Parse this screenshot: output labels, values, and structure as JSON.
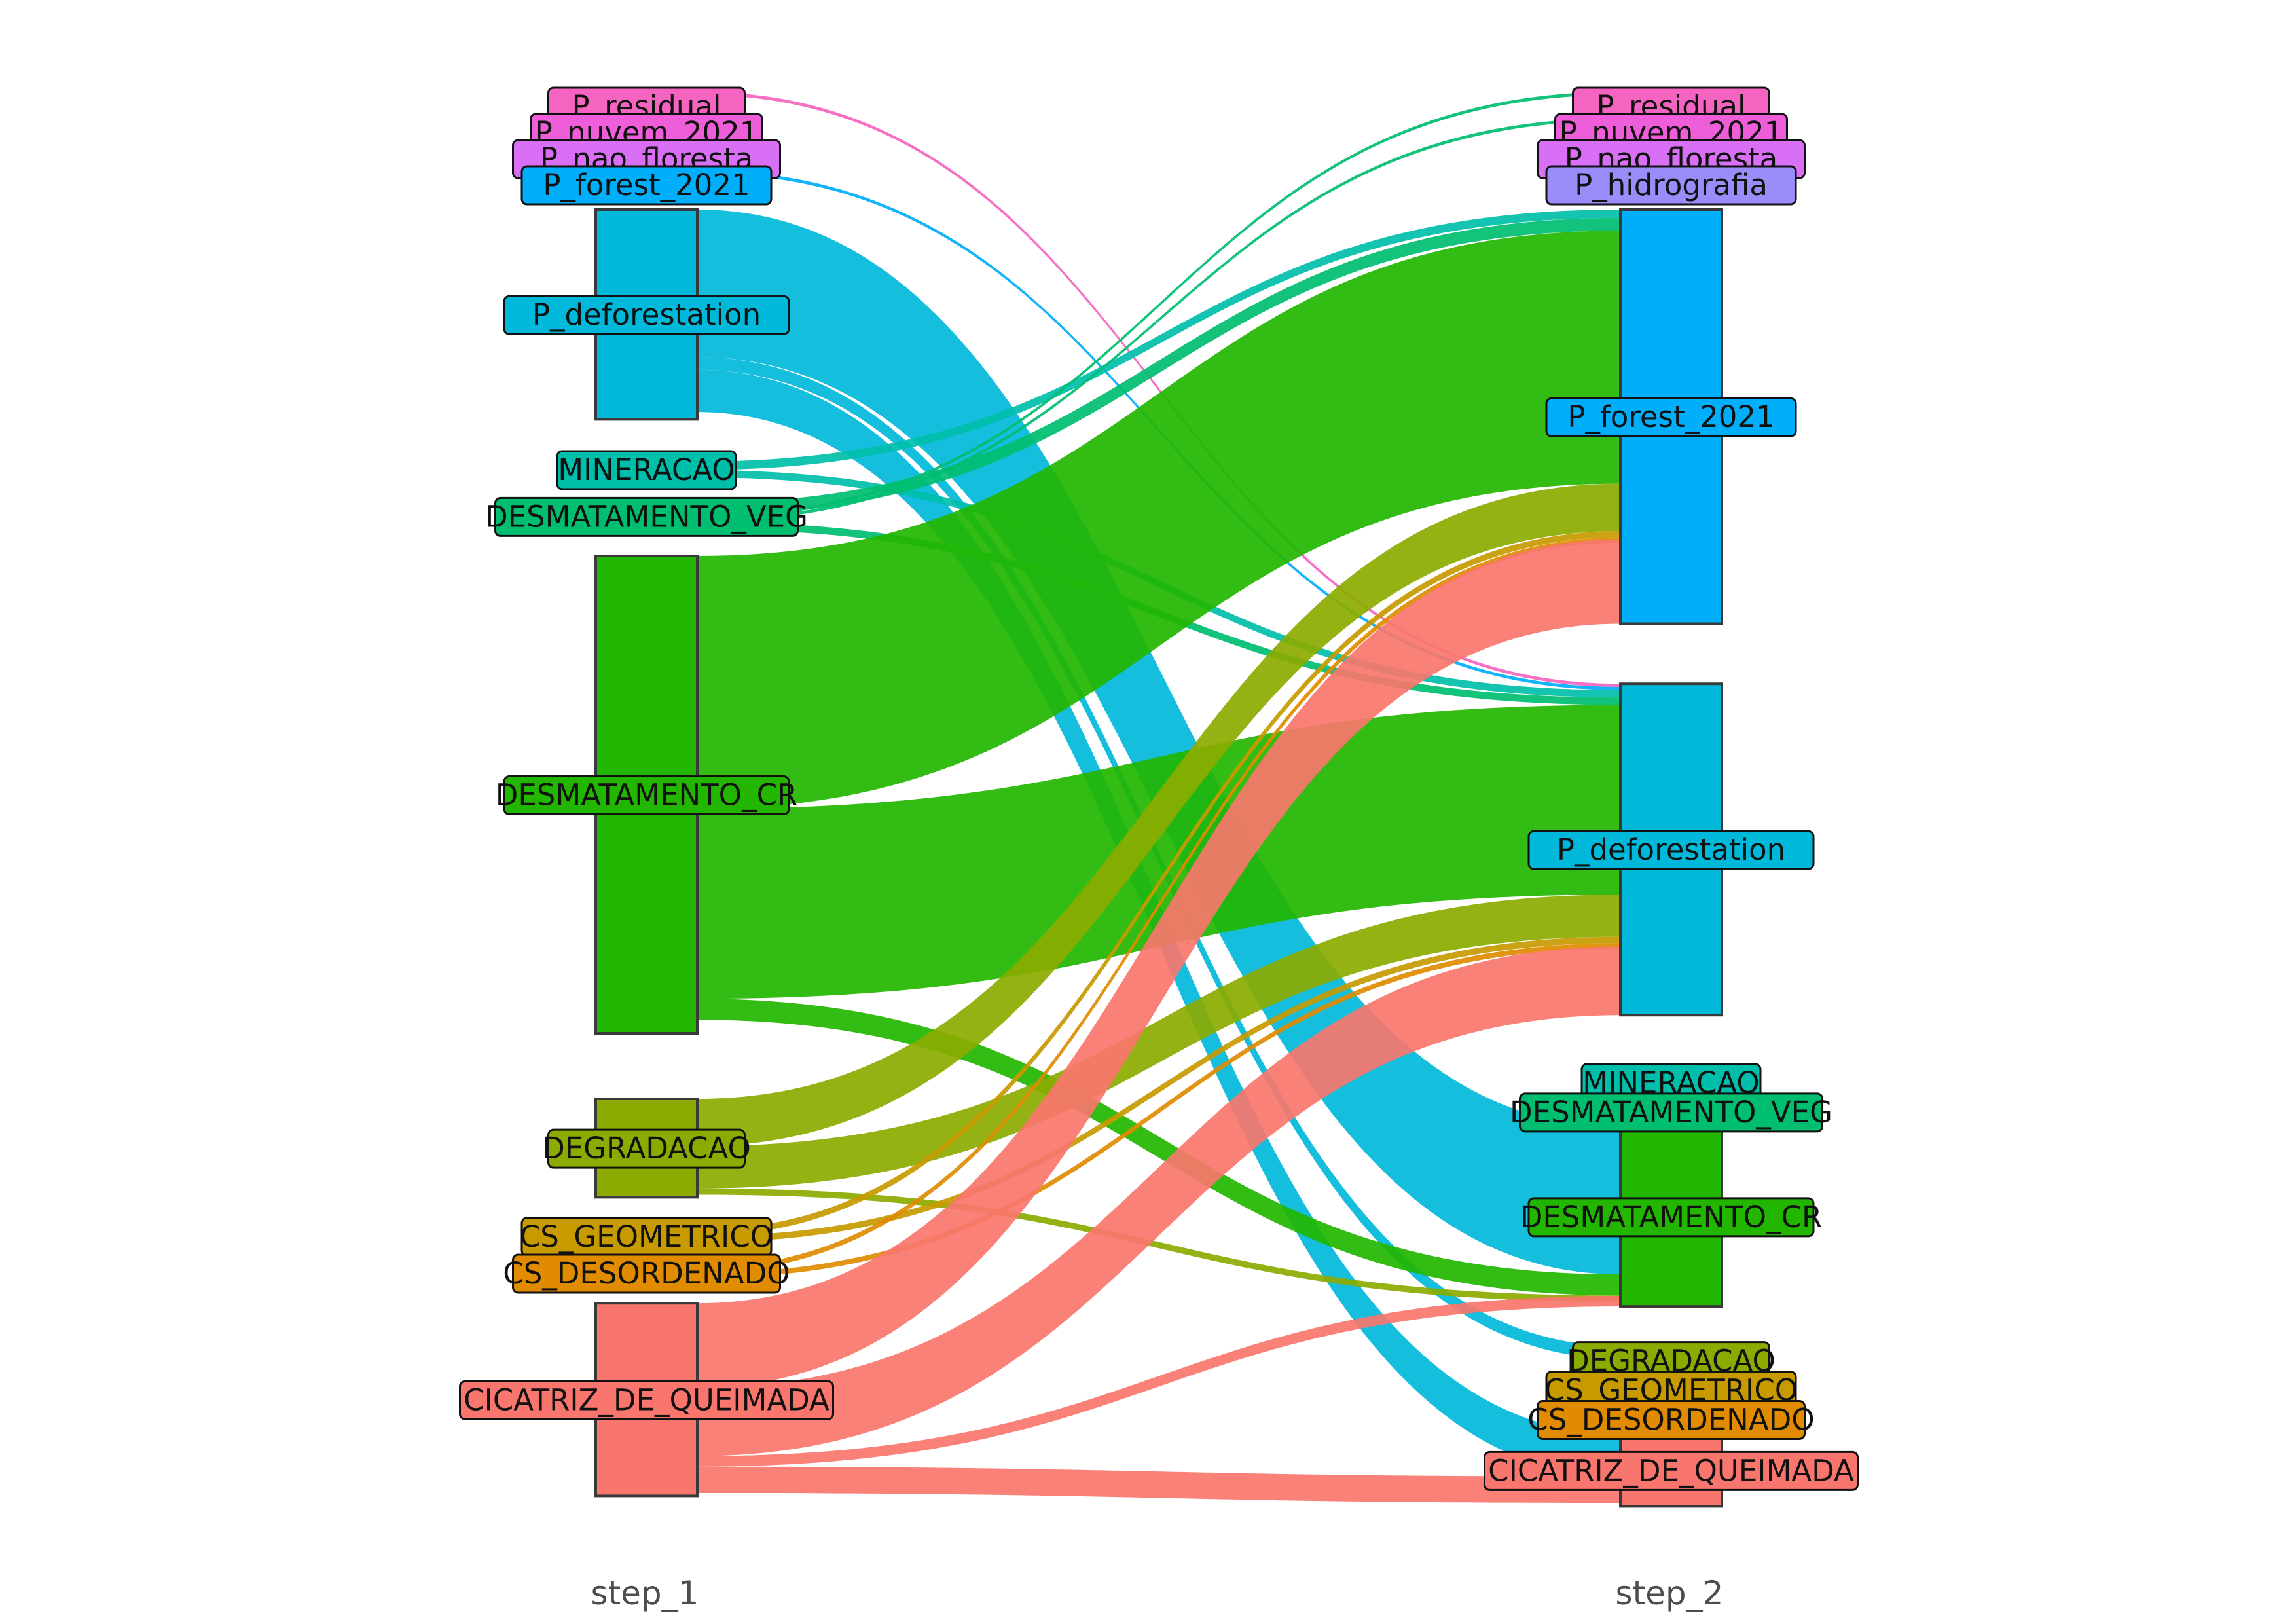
{
  "chart_data": {
    "type": "sankey",
    "steps": [
      "step_1",
      "step_2"
    ],
    "categories": [
      {
        "name": "P_residual",
        "color": "#F564C0"
      },
      {
        "name": "P_nuvem_2021",
        "color": "#EE5ED9"
      },
      {
        "name": "P_nao_floresta",
        "color": "#D96FF4"
      },
      {
        "name": "P_hidrografia",
        "color": "#9A8CF9"
      },
      {
        "name": "P_forest_2021",
        "color": "#00AEFA"
      },
      {
        "name": "P_deforestation",
        "color": "#00B8D9"
      },
      {
        "name": "MINERACAO",
        "color": "#00BFAA"
      },
      {
        "name": "DESMATAMENTO_VEG",
        "color": "#00BE70"
      },
      {
        "name": "DESMATAMENTO_CR",
        "color": "#22B600"
      },
      {
        "name": "DEGRADACAO",
        "color": "#8BAB00"
      },
      {
        "name": "CS_GEOMETRICO",
        "color": "#C79A00"
      },
      {
        "name": "CS_DESORDENADO",
        "color": "#E08B00"
      },
      {
        "name": "CICATRIZ_DE_QUEIMADA",
        "color": "#F8766D"
      }
    ],
    "nodes_step_1": [
      {
        "name": "P_residual",
        "share": 0.0
      },
      {
        "name": "P_nuvem_2021",
        "share": 0.0
      },
      {
        "name": "P_nao_floresta",
        "share": 0.0
      },
      {
        "name": "P_forest_2021",
        "share": 0.003
      },
      {
        "name": "P_deforestation",
        "share": 0.196
      },
      {
        "name": "MINERACAO",
        "share": 0.015
      },
      {
        "name": "DESMATAMENTO_VEG",
        "share": 0.025
      },
      {
        "name": "DESMATAMENTO_CR",
        "share": 0.446
      },
      {
        "name": "DEGRADACAO",
        "share": 0.092
      },
      {
        "name": "CS_GEOMETRICO",
        "share": 0.012
      },
      {
        "name": "CS_DESORDENADO",
        "share": 0.01
      },
      {
        "name": "CICATRIZ_DE_QUEIMADA",
        "share": 0.18
      }
    ],
    "nodes_step_2": [
      {
        "name": "P_residual",
        "share": 0.003
      },
      {
        "name": "P_nuvem_2021",
        "share": 0.003
      },
      {
        "name": "P_nao_floresta",
        "share": 0.0
      },
      {
        "name": "P_hidrografia",
        "share": 0.0
      },
      {
        "name": "P_forest_2021",
        "share": 0.385
      },
      {
        "name": "P_deforestation",
        "share": 0.308
      },
      {
        "name": "MINERACAO",
        "share": 0.0
      },
      {
        "name": "DESMATAMENTO_VEG",
        "share": 0.0
      },
      {
        "name": "DESMATAMENTO_CR",
        "share": 0.167
      },
      {
        "name": "DEGRADACAO",
        "share": 0.0
      },
      {
        "name": "CS_GEOMETRICO",
        "share": 0.0
      },
      {
        "name": "CS_DESORDENADO",
        "share": 0.0
      },
      {
        "name": "CICATRIZ_DE_QUEIMADA",
        "share": 0.067
      }
    ],
    "flows": [
      {
        "from": "P_residual",
        "to": "P_deforestation",
        "value": 0.003
      },
      {
        "from": "P_forest_2021",
        "to": "P_deforestation",
        "value": 0.003
      },
      {
        "from": "P_deforestation",
        "to": "DESMATAMENTO_CR",
        "value": 0.14
      },
      {
        "from": "P_deforestation",
        "to": "DEGRADACAO",
        "value": 0.012
      },
      {
        "from": "P_deforestation",
        "to": "CICATRIZ_DE_QUEIMADA",
        "value": 0.04
      },
      {
        "from": "MINERACAO",
        "to": "P_forest_2021",
        "value": 0.008
      },
      {
        "from": "MINERACAO",
        "to": "P_deforestation",
        "value": 0.007
      },
      {
        "from": "DESMATAMENTO_VEG",
        "to": "P_forest_2021",
        "value": 0.012
      },
      {
        "from": "DESMATAMENTO_VEG",
        "to": "P_residual",
        "value": 0.003
      },
      {
        "from": "DESMATAMENTO_VEG",
        "to": "P_nuvem_2021",
        "value": 0.003
      },
      {
        "from": "DESMATAMENTO_VEG",
        "to": "P_deforestation",
        "value": 0.007
      },
      {
        "from": "DESMATAMENTO_CR",
        "to": "P_forest_2021",
        "value": 0.24
      },
      {
        "from": "DESMATAMENTO_CR",
        "to": "P_deforestation",
        "value": 0.18
      },
      {
        "from": "DESMATAMENTO_CR",
        "to": "DESMATAMENTO_CR",
        "value": 0.02
      },
      {
        "from": "DEGRADACAO",
        "to": "P_forest_2021",
        "value": 0.045
      },
      {
        "from": "DEGRADACAO",
        "to": "P_deforestation",
        "value": 0.04
      },
      {
        "from": "DEGRADACAO",
        "to": "DESMATAMENTO_CR",
        "value": 0.006
      },
      {
        "from": "CS_GEOMETRICO",
        "to": "P_forest_2021",
        "value": 0.006
      },
      {
        "from": "CS_GEOMETRICO",
        "to": "P_deforestation",
        "value": 0.006
      },
      {
        "from": "CS_DESORDENADO",
        "to": "P_forest_2021",
        "value": 0.005
      },
      {
        "from": "CS_DESORDENADO",
        "to": "P_deforestation",
        "value": 0.005
      },
      {
        "from": "CICATRIZ_DE_QUEIMADA",
        "to": "P_forest_2021",
        "value": 0.08
      },
      {
        "from": "CICATRIZ_DE_QUEIMADA",
        "to": "P_deforestation",
        "value": 0.065
      },
      {
        "from": "CICATRIZ_DE_QUEIMADA",
        "to": "DESMATAMENTO_CR",
        "value": 0.01
      },
      {
        "from": "CICATRIZ_DE_QUEIMADA",
        "to": "CICATRIZ_DE_QUEIMADA",
        "value": 0.025
      }
    ]
  }
}
